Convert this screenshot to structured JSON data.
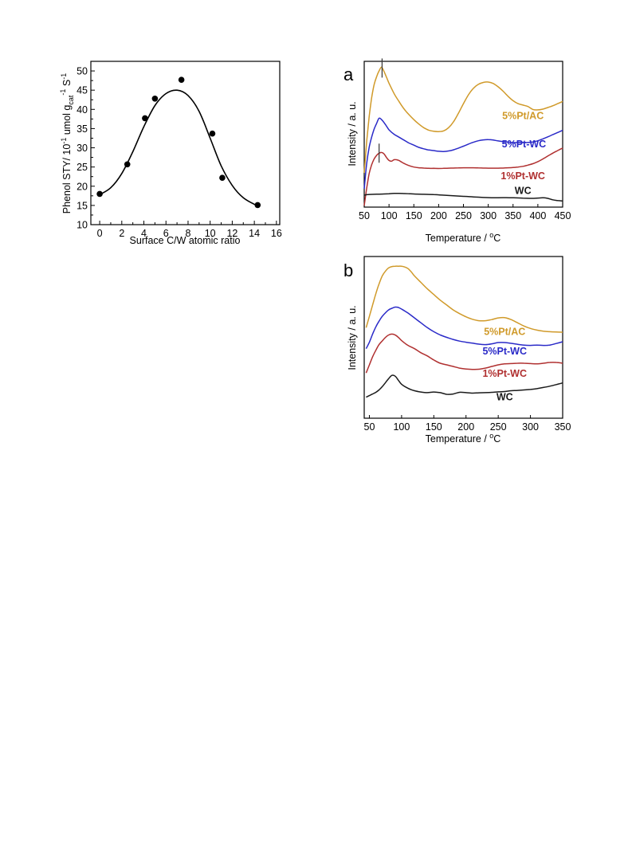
{
  "chart_data": [
    {
      "type": "scatter",
      "xlabel": "Surface C/W atomic ratio",
      "ylabel": {
        "main": "Phenol STY/ 10",
        "exp1": "-1",
        "mid1": " umol g",
        "sub": "cat",
        "exp2": "-1",
        "mid2": " S",
        "exp3": "-1"
      },
      "xlim": [
        -0.8,
        16.3
      ],
      "ylim": [
        10,
        52.5
      ],
      "xticks": [
        "0",
        "2",
        "4",
        "6",
        "8",
        "10",
        "12",
        "14",
        "16"
      ],
      "yticks": [
        "10",
        "15",
        "20",
        "25",
        "30",
        "35",
        "40",
        "45",
        "50"
      ],
      "points": [
        {
          "x": 0.0,
          "y": 18.0
        },
        {
          "x": 2.5,
          "y": 25.7
        },
        {
          "x": 4.1,
          "y": 37.7
        },
        {
          "x": 5.0,
          "y": 42.8
        },
        {
          "x": 7.4,
          "y": 47.7
        },
        {
          "x": 10.2,
          "y": 33.7
        },
        {
          "x": 11.1,
          "y": 22.2
        },
        {
          "x": 14.3,
          "y": 15.1
        }
      ],
      "fit": {
        "x": [
          0,
          1,
          2,
          3,
          4,
          5,
          6,
          7,
          8,
          9,
          10,
          11,
          12,
          13,
          14.2
        ],
        "y": [
          17.8,
          19.6,
          23.3,
          29.0,
          35.5,
          41.0,
          44.1,
          45.0,
          43.6,
          39.5,
          32.5,
          25.3,
          20.2,
          17.0,
          15.0
        ]
      }
    },
    {
      "type": "line",
      "panel_label": "a",
      "xlabel": "Temperature / ",
      "xlabel_unit": "C",
      "xlabel_sup": "o",
      "ylabel": "Intensity / a. u.",
      "xlim": [
        50,
        450
      ],
      "xticks": [
        "50",
        "100",
        "150",
        "200",
        "250",
        "300",
        "350",
        "400",
        "450"
      ],
      "series": [
        {
          "name": "5%Pt/AC",
          "color": "#d09a2a",
          "label_x": 370,
          "label_y": 0.605,
          "x": [
            50,
            55,
            60,
            65,
            70,
            75,
            80,
            85,
            90,
            95,
            100,
            110,
            120,
            130,
            140,
            150,
            160,
            170,
            180,
            190,
            200,
            210,
            220,
            230,
            240,
            250,
            260,
            270,
            280,
            290,
            300,
            310,
            320,
            330,
            340,
            350,
            360,
            370,
            380,
            390,
            400,
            410,
            420,
            430,
            440,
            450
          ],
          "y": [
            0.235,
            0.45,
            0.62,
            0.75,
            0.84,
            0.895,
            0.935,
            0.96,
            0.93,
            0.89,
            0.85,
            0.78,
            0.725,
            0.675,
            0.635,
            0.6,
            0.57,
            0.545,
            0.528,
            0.52,
            0.518,
            0.523,
            0.545,
            0.585,
            0.645,
            0.71,
            0.77,
            0.815,
            0.842,
            0.855,
            0.858,
            0.848,
            0.825,
            0.795,
            0.76,
            0.73,
            0.71,
            0.7,
            0.69,
            0.67,
            0.667,
            0.672,
            0.683,
            0.695,
            0.71,
            0.725
          ]
        },
        {
          "name": "5%Pt-WC",
          "color": "#2a2ac8",
          "label_x": 372,
          "label_y": 0.41,
          "x": [
            50,
            55,
            60,
            65,
            70,
            75,
            80,
            85,
            90,
            95,
            100,
            110,
            120,
            130,
            140,
            150,
            160,
            170,
            180,
            190,
            200,
            210,
            220,
            230,
            240,
            250,
            260,
            270,
            280,
            290,
            300,
            310,
            320,
            330,
            340,
            350,
            360,
            370,
            380,
            390,
            400,
            410,
            420,
            430,
            440,
            450
          ],
          "y": [
            0.125,
            0.3,
            0.41,
            0.48,
            0.535,
            0.575,
            0.61,
            0.6,
            0.58,
            0.555,
            0.53,
            0.5,
            0.48,
            0.46,
            0.44,
            0.425,
            0.41,
            0.4,
            0.392,
            0.388,
            0.383,
            0.381,
            0.385,
            0.393,
            0.405,
            0.418,
            0.432,
            0.445,
            0.455,
            0.461,
            0.463,
            0.46,
            0.454,
            0.449,
            0.446,
            0.443,
            0.443,
            0.443,
            0.443,
            0.447,
            0.455,
            0.468,
            0.482,
            0.497,
            0.512,
            0.527
          ]
        },
        {
          "name": "1%Pt-WC",
          "color": "#b03030",
          "label_x": 370,
          "label_y": 0.19,
          "x": [
            50,
            55,
            60,
            65,
            70,
            75,
            80,
            85,
            90,
            95,
            100,
            105,
            110,
            115,
            120,
            125,
            130,
            140,
            150,
            160,
            170,
            180,
            190,
            200,
            210,
            220,
            230,
            240,
            250,
            260,
            270,
            280,
            290,
            300,
            310,
            320,
            330,
            340,
            350,
            360,
            370,
            380,
            390,
            400,
            410,
            420,
            430,
            440,
            450
          ],
          "y": [
            0.01,
            0.13,
            0.23,
            0.29,
            0.33,
            0.355,
            0.37,
            0.375,
            0.365,
            0.34,
            0.32,
            0.315,
            0.325,
            0.325,
            0.32,
            0.31,
            0.3,
            0.285,
            0.275,
            0.27,
            0.268,
            0.266,
            0.266,
            0.265,
            0.266,
            0.267,
            0.268,
            0.269,
            0.27,
            0.27,
            0.27,
            0.269,
            0.268,
            0.267,
            0.267,
            0.267,
            0.268,
            0.27,
            0.272,
            0.275,
            0.28,
            0.288,
            0.298,
            0.312,
            0.33,
            0.35,
            0.37,
            0.388,
            0.405
          ]
        },
        {
          "name": "WC",
          "color": "#1a1a1a",
          "label_x": 370,
          "label_y": 0.09,
          "x": [
            50,
            55,
            60,
            70,
            80,
            90,
            100,
            110,
            120,
            130,
            140,
            150,
            170,
            190,
            210,
            230,
            250,
            270,
            290,
            310,
            330,
            350,
            370,
            390,
            410,
            420,
            430,
            440,
            450
          ],
          "y": [
            0.082,
            0.085,
            0.087,
            0.088,
            0.089,
            0.09,
            0.092,
            0.094,
            0.094,
            0.093,
            0.092,
            0.09,
            0.088,
            0.086,
            0.082,
            0.078,
            0.074,
            0.07,
            0.066,
            0.064,
            0.065,
            0.064,
            0.062,
            0.06,
            0.064,
            0.06,
            0.05,
            0.045,
            0.042
          ]
        }
      ],
      "markers": [
        {
          "series": 0,
          "x": 86
        },
        {
          "series": 2,
          "x": 80
        }
      ]
    },
    {
      "type": "line",
      "panel_label": "b",
      "xlabel": "Temperature / ",
      "xlabel_unit": "C",
      "xlabel_sup": "o",
      "ylabel": "Intensity / a. u.",
      "xlim": [
        42,
        350
      ],
      "xticks": [
        "50",
        "100",
        "150",
        "200",
        "250",
        "300",
        "350"
      ],
      "series": [
        {
          "name": "5%Pt/AC",
          "color": "#d09a2a",
          "label_x": 260,
          "label_y": 0.515,
          "x": [
            45,
            50,
            55,
            60,
            65,
            70,
            75,
            80,
            85,
            90,
            95,
            100,
            105,
            110,
            115,
            120,
            130,
            140,
            150,
            160,
            170,
            180,
            190,
            200,
            210,
            220,
            230,
            240,
            250,
            260,
            270,
            280,
            290,
            300,
            310,
            320,
            330,
            340,
            350
          ],
          "y": [
            0.56,
            0.63,
            0.7,
            0.77,
            0.83,
            0.88,
            0.91,
            0.93,
            0.938,
            0.94,
            0.94,
            0.94,
            0.935,
            0.925,
            0.905,
            0.88,
            0.84,
            0.8,
            0.765,
            0.73,
            0.7,
            0.67,
            0.647,
            0.627,
            0.612,
            0.603,
            0.603,
            0.61,
            0.62,
            0.622,
            0.61,
            0.59,
            0.57,
            0.555,
            0.545,
            0.538,
            0.535,
            0.533,
            0.532
          ]
        },
        {
          "name": "5%Pt-WC",
          "color": "#2a2ac8",
          "label_x": 260,
          "label_y": 0.395,
          "x": [
            45,
            50,
            55,
            60,
            65,
            70,
            75,
            80,
            85,
            90,
            95,
            100,
            110,
            120,
            130,
            140,
            150,
            160,
            170,
            180,
            190,
            200,
            210,
            220,
            230,
            240,
            250,
            260,
            270,
            280,
            290,
            300,
            310,
            320,
            330,
            340,
            350
          ],
          "y": [
            0.43,
            0.47,
            0.52,
            0.565,
            0.6,
            0.63,
            0.652,
            0.67,
            0.68,
            0.687,
            0.685,
            0.675,
            0.65,
            0.62,
            0.59,
            0.56,
            0.535,
            0.515,
            0.5,
            0.487,
            0.477,
            0.47,
            0.464,
            0.458,
            0.455,
            0.46,
            0.468,
            0.468,
            0.463,
            0.457,
            0.452,
            0.45,
            0.452,
            0.45,
            0.452,
            0.462,
            0.473
          ]
        },
        {
          "name": "1%Pt-WC",
          "color": "#b03030",
          "label_x": 260,
          "label_y": 0.255,
          "x": [
            45,
            50,
            55,
            60,
            65,
            70,
            75,
            80,
            85,
            90,
            95,
            100,
            110,
            120,
            130,
            140,
            150,
            160,
            170,
            180,
            190,
            200,
            210,
            220,
            230,
            240,
            250,
            260,
            270,
            280,
            290,
            300,
            310,
            320,
            330,
            340,
            350
          ],
          "y": [
            0.28,
            0.33,
            0.38,
            0.42,
            0.455,
            0.478,
            0.5,
            0.515,
            0.52,
            0.515,
            0.5,
            0.48,
            0.45,
            0.43,
            0.405,
            0.385,
            0.36,
            0.34,
            0.33,
            0.32,
            0.31,
            0.304,
            0.302,
            0.303,
            0.31,
            0.32,
            0.33,
            0.336,
            0.338,
            0.34,
            0.34,
            0.338,
            0.336,
            0.34,
            0.345,
            0.345,
            0.34
          ]
        },
        {
          "name": "WC",
          "color": "#1a1a1a",
          "label_x": 260,
          "label_y": 0.11,
          "x": [
            45,
            50,
            55,
            60,
            65,
            70,
            75,
            80,
            85,
            90,
            95,
            100,
            110,
            120,
            130,
            140,
            150,
            160,
            170,
            180,
            190,
            200,
            210,
            220,
            230,
            240,
            250,
            260,
            270,
            280,
            290,
            300,
            310,
            320,
            330,
            340,
            350
          ],
          "y": [
            0.13,
            0.14,
            0.15,
            0.16,
            0.175,
            0.195,
            0.22,
            0.245,
            0.265,
            0.26,
            0.235,
            0.21,
            0.185,
            0.17,
            0.162,
            0.158,
            0.162,
            0.158,
            0.148,
            0.15,
            0.16,
            0.158,
            0.155,
            0.157,
            0.158,
            0.16,
            0.163,
            0.165,
            0.17,
            0.172,
            0.175,
            0.178,
            0.183,
            0.19,
            0.198,
            0.208,
            0.218
          ]
        }
      ],
      "markers": []
    }
  ]
}
